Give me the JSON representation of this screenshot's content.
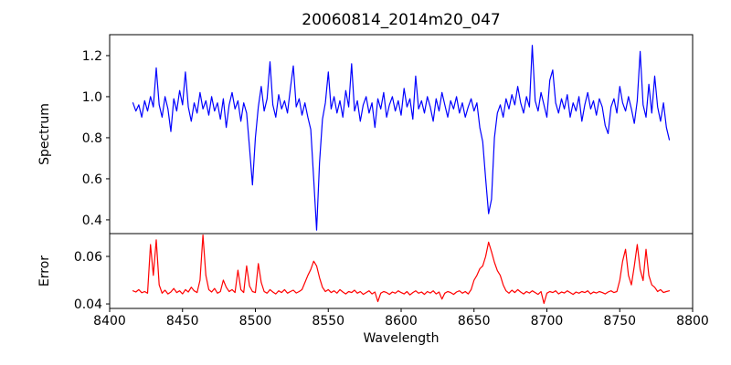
{
  "title": "20060814_2014m20_047",
  "xlabel": "Wavelength",
  "xticks": [
    8400,
    8450,
    8500,
    8550,
    8600,
    8650,
    8700,
    8750,
    8800
  ],
  "colors": {
    "spectrum_line": "#0000ff",
    "error_line": "#ff0000",
    "axis": "#000000",
    "background": "#ffffff"
  },
  "chart_data": [
    {
      "type": "line",
      "panel": "spectrum",
      "ylabel": "Spectrum",
      "color": "#0000ff",
      "xlim": [
        8400,
        8800
      ],
      "ylim": [
        0.333,
        1.302
      ],
      "yticks": [
        1.2,
        1.0,
        0.8,
        0.6,
        0.4
      ],
      "ytick_labels": [
        "1.2",
        "1.0",
        "0.8",
        "0.6",
        "0.4"
      ],
      "grid": false,
      "legend": null,
      "features": "continuum ~0.96 with noise; absorption dips at 8498 (0.57), 8542 (0.35), 8662 (0.43); emission spikes at 8690 (1.25), 8764 (1.22)",
      "x_start": 8416,
      "x_step": 2,
      "values": [
        0.97,
        0.93,
        0.96,
        0.9,
        0.98,
        0.93,
        1.0,
        0.95,
        1.14,
        0.96,
        0.9,
        1.0,
        0.94,
        0.83,
        0.99,
        0.93,
        1.03,
        0.96,
        1.12,
        0.95,
        0.88,
        0.97,
        0.92,
        1.02,
        0.94,
        0.98,
        0.91,
        1.0,
        0.93,
        0.97,
        0.89,
        0.99,
        0.85,
        0.96,
        1.02,
        0.94,
        0.98,
        0.88,
        0.97,
        0.92,
        0.75,
        0.57,
        0.8,
        0.95,
        1.05,
        0.93,
        0.99,
        1.17,
        0.96,
        0.9,
        1.01,
        0.94,
        0.98,
        0.92,
        1.04,
        1.15,
        0.95,
        0.99,
        0.91,
        0.97,
        0.9,
        0.84,
        0.6,
        0.35,
        0.68,
        0.89,
        0.97,
        1.12,
        0.94,
        1.0,
        0.92,
        0.98,
        0.9,
        1.03,
        0.95,
        1.16,
        0.93,
        0.98,
        0.88,
        0.96,
        1.0,
        0.92,
        0.97,
        0.85,
        0.99,
        0.94,
        1.02,
        0.9,
        0.96,
        1.0,
        0.93,
        0.98,
        0.91,
        1.04,
        0.95,
        0.99,
        0.89,
        1.1,
        0.94,
        0.98,
        0.92,
        1.0,
        0.95,
        0.88,
        0.99,
        0.93,
        1.02,
        0.96,
        0.9,
        0.98,
        0.94,
        1.0,
        0.92,
        0.97,
        0.9,
        0.95,
        0.99,
        0.93,
        0.97,
        0.85,
        0.78,
        0.6,
        0.43,
        0.5,
        0.8,
        0.92,
        0.96,
        0.9,
        0.99,
        0.94,
        1.01,
        0.96,
        1.05,
        0.97,
        0.92,
        1.0,
        0.95,
        1.25,
        0.98,
        0.93,
        1.02,
        0.96,
        0.9,
        1.08,
        1.13,
        0.97,
        0.92,
        0.99,
        0.94,
        1.01,
        0.9,
        0.97,
        0.93,
        1.0,
        0.88,
        0.96,
        1.02,
        0.94,
        0.98,
        0.91,
        0.99,
        0.95,
        0.86,
        0.82,
        0.95,
        0.99,
        0.92,
        1.05,
        0.97,
        0.93,
        1.0,
        0.94,
        0.87,
        0.98,
        1.22,
        0.96,
        0.9,
        1.06,
        0.92,
        1.1,
        0.95,
        0.88,
        0.97,
        0.85,
        0.79
      ]
    },
    {
      "type": "line",
      "panel": "error",
      "ylabel": "Error",
      "color": "#ff0000",
      "xlim": [
        8400,
        8800
      ],
      "ylim": [
        0.0381,
        0.0696
      ],
      "yticks": [
        0.06,
        0.04
      ],
      "ytick_labels": [
        "0.06",
        "0.04"
      ],
      "grid": false,
      "legend": null,
      "features": "baseline ~0.045; spikes at 8428/8432 (0.065/0.067), 8464 (0.069), broad bumps at 8540 (0.058) and 8660 (0.066), cluster 8752-8770 (up to 0.065)",
      "x_start": 8416,
      "x_step": 2,
      "values": [
        0.0455,
        0.045,
        0.046,
        0.0447,
        0.0452,
        0.0445,
        0.065,
        0.052,
        0.067,
        0.048,
        0.0445,
        0.0458,
        0.0442,
        0.045,
        0.0465,
        0.0448,
        0.0455,
        0.0442,
        0.046,
        0.045,
        0.047,
        0.0455,
        0.0448,
        0.05,
        0.069,
        0.052,
        0.046,
        0.045,
        0.0465,
        0.0445,
        0.0452,
        0.05,
        0.047,
        0.0452,
        0.046,
        0.0448,
        0.0542,
        0.046,
        0.0448,
        0.056,
        0.0475,
        0.0452,
        0.0448,
        0.057,
        0.049,
        0.0452,
        0.0445,
        0.046,
        0.045,
        0.0442,
        0.0455,
        0.0448,
        0.046,
        0.0445,
        0.0452,
        0.0458,
        0.0446,
        0.0452,
        0.046,
        0.049,
        0.052,
        0.0545,
        0.058,
        0.056,
        0.051,
        0.047,
        0.0452,
        0.046,
        0.0448,
        0.0455,
        0.0445,
        0.046,
        0.045,
        0.0442,
        0.0452,
        0.0448,
        0.0458,
        0.0445,
        0.0452,
        0.044,
        0.0448,
        0.0455,
        0.0442,
        0.045,
        0.041,
        0.0445,
        0.0452,
        0.0448,
        0.044,
        0.045,
        0.0445,
        0.0455,
        0.0448,
        0.0442,
        0.0452,
        0.0438,
        0.0448,
        0.0455,
        0.0445,
        0.045,
        0.044,
        0.0452,
        0.0446,
        0.0455,
        0.0442,
        0.045,
        0.042,
        0.0445,
        0.0452,
        0.0448,
        0.044,
        0.045,
        0.0455,
        0.0445,
        0.0452,
        0.0442,
        0.046,
        0.05,
        0.052,
        0.0548,
        0.056,
        0.06,
        0.066,
        0.062,
        0.0575,
        0.054,
        0.052,
        0.048,
        0.0455,
        0.0445,
        0.0458,
        0.0448,
        0.046,
        0.045,
        0.0442,
        0.0452,
        0.0446,
        0.0455,
        0.0448,
        0.044,
        0.0452,
        0.0402,
        0.0445,
        0.0452,
        0.0448,
        0.0455,
        0.0442,
        0.045,
        0.0446,
        0.0455,
        0.0448,
        0.044,
        0.045,
        0.0445,
        0.0452,
        0.0448,
        0.0455,
        0.0442,
        0.045,
        0.0446,
        0.0452,
        0.0448,
        0.0442,
        0.045,
        0.0455,
        0.0448,
        0.0452,
        0.05,
        0.058,
        0.063,
        0.052,
        0.048,
        0.056,
        0.065,
        0.0545,
        0.0498,
        0.063,
        0.052,
        0.048,
        0.047,
        0.0452,
        0.046,
        0.0448,
        0.0452,
        0.0455
      ]
    }
  ]
}
